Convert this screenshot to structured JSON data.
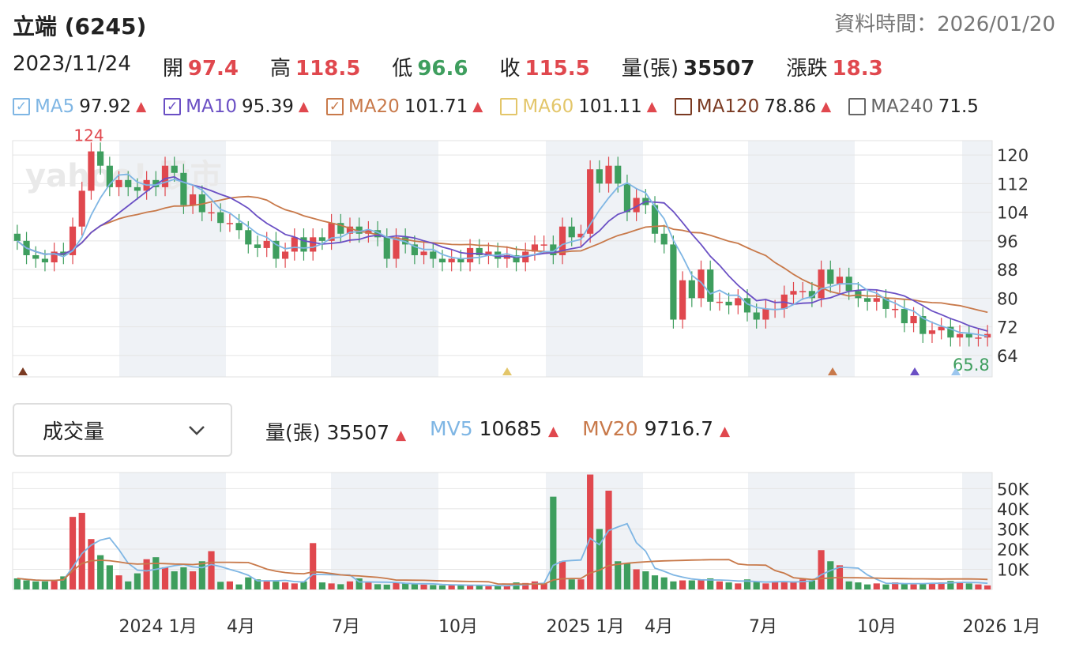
{
  "header": {
    "title": "立端 (6245)",
    "data_time": "資料時間：2026/01/20"
  },
  "ohlc": {
    "date": "2023/11/24",
    "open_label": "開",
    "open": "97.4",
    "high_label": "高",
    "high": "118.5",
    "low_label": "低",
    "low": "96.6",
    "close_label": "收",
    "close": "115.5",
    "volume_label": "量(張)",
    "volume": "35507",
    "change_label": "漲跌",
    "change": "18.3"
  },
  "ma": [
    {
      "name": "MA5",
      "value": "97.92",
      "color": "#7fb6e4",
      "checked": true,
      "trend": "▲"
    },
    {
      "name": "MA10",
      "value": "95.39",
      "color": "#6a4fc4",
      "checked": true,
      "trend": "▲"
    },
    {
      "name": "MA20",
      "value": "101.71",
      "color": "#c8794a",
      "checked": true,
      "trend": "▲"
    },
    {
      "name": "MA60",
      "value": "101.11",
      "color": "#e3c66a",
      "checked": false,
      "trend": "▲"
    },
    {
      "name": "MA120",
      "value": "78.86",
      "color": "#7a3a22",
      "checked": false,
      "trend": "▲"
    },
    {
      "name": "MA240",
      "value": "71.5",
      "color": "#666666",
      "checked": false,
      "trend": ""
    }
  ],
  "watermark": "yahoo! 股市",
  "volume_panel": {
    "selector_label": "成交量",
    "vol_label": "量(張)",
    "vol_value": "35507",
    "vol_trend": "▲",
    "mv5_label": "MV5",
    "mv5_value": "10685",
    "mv5_trend": "▲",
    "mv20_label": "MV20",
    "mv20_value": "9716.7",
    "mv20_trend": "▲"
  },
  "colors": {
    "up": "#e0484e",
    "down": "#3e9e5e",
    "ma5": "#7fb6e4",
    "ma10": "#6a4fc4",
    "ma20": "#c8794a"
  },
  "chart_data": {
    "type": "candlestick",
    "price_axis": {
      "ticks": [
        "120",
        "112",
        "104",
        "96",
        "88",
        "80",
        "72",
        "64"
      ],
      "ylim": [
        58,
        124
      ]
    },
    "volume_axis": {
      "ticks": [
        "50K",
        "40K",
        "30K",
        "20K",
        "10K"
      ],
      "ylim": [
        0,
        58000
      ]
    },
    "x_labels": [
      "2024 1月",
      "4月",
      "7月",
      "10月",
      "2025 1月",
      "4月",
      "7月",
      "10月",
      "2026 1月"
    ],
    "annotations": {
      "max_label": "124",
      "min_label": "65.8"
    },
    "close": [
      96,
      92,
      91,
      90,
      93,
      92,
      100,
      110,
      121,
      117,
      111,
      113,
      111,
      110,
      113,
      111,
      117,
      115,
      106,
      109,
      104,
      104,
      101,
      101,
      99,
      95,
      94,
      96,
      91,
      93,
      97,
      93,
      97,
      96,
      101,
      98,
      100,
      98,
      99,
      97,
      91,
      97,
      95,
      92,
      93,
      91,
      90,
      91,
      90,
      94,
      92,
      93,
      91,
      92,
      90,
      93,
      95,
      95,
      92,
      100,
      97,
      98,
      116,
      112,
      117,
      112,
      104,
      108,
      106,
      98,
      95,
      74,
      85,
      80,
      88,
      79,
      79,
      78,
      80,
      76,
      74,
      77,
      77,
      81,
      82,
      82,
      80,
      88,
      84,
      86,
      82,
      80,
      79,
      80,
      77,
      77,
      73,
      75,
      70,
      71,
      72,
      69,
      70,
      69,
      69,
      70
    ],
    "volume": [
      5500,
      4500,
      4000,
      4000,
      4500,
      6500,
      36000,
      38000,
      25000,
      17000,
      12000,
      7000,
      4000,
      8000,
      15000,
      16000,
      11000,
      9000,
      11000,
      9000,
      14000,
      19000,
      3800,
      4000,
      2500,
      6000,
      5000,
      4000,
      4000,
      3500,
      3000,
      4000,
      23000,
      3500,
      3000,
      2600,
      4000,
      5500,
      3500,
      2600,
      2400,
      3500,
      3200,
      2600,
      2400,
      2200,
      2000,
      2400,
      2200,
      1800,
      2200,
      1600,
      1800,
      1600,
      3500,
      3200,
      4000,
      3000,
      46000,
      14000,
      5000,
      5000,
      57000,
      30000,
      49000,
      14000,
      13000,
      10000,
      9000,
      7000,
      6000,
      4000,
      4500,
      4500,
      5000,
      5500,
      4000,
      3500,
      3000,
      5000,
      4000,
      3000,
      4000,
      3500,
      4000,
      5000,
      4500,
      19500,
      14000,
      12000,
      4000,
      3500,
      2500,
      3000,
      2500,
      3500,
      3000,
      2500,
      3000,
      3200,
      3500,
      4200,
      3600,
      3000,
      2500,
      2000
    ],
    "series": [
      {
        "name": "MA5"
      },
      {
        "name": "MA10"
      },
      {
        "name": "MA20"
      },
      {
        "name": "MV5"
      },
      {
        "name": "MV20"
      }
    ]
  }
}
